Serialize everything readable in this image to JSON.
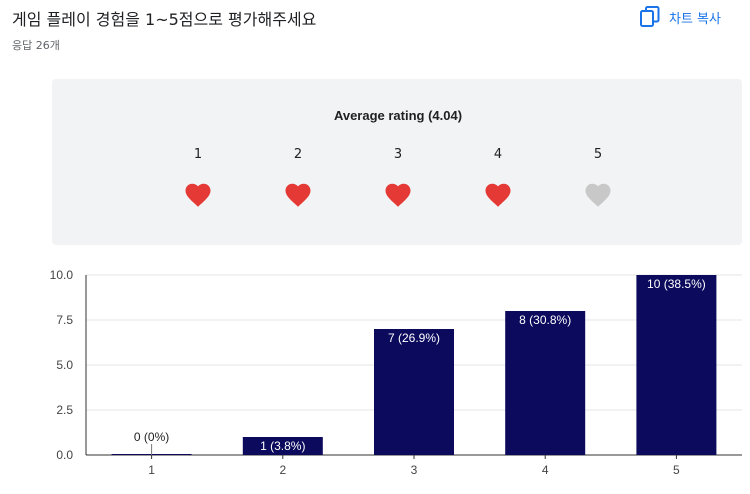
{
  "header": {
    "question": "게임 플레이 경험을 1~5점으로 평가해주세요",
    "response_count": "응답 26개",
    "copy_chart_label": "차트 복사",
    "copy_icon": "copy-icon",
    "accent_color": "#1a73e8"
  },
  "rating_summary": {
    "title": "Average rating (4.04)",
    "average": 4.04,
    "levels": [
      {
        "label": "1",
        "filled": true
      },
      {
        "label": "2",
        "filled": true
      },
      {
        "label": "3",
        "filled": true
      },
      {
        "label": "4",
        "filled": true
      },
      {
        "label": "5",
        "filled": false
      }
    ],
    "icon": "heart-icon",
    "filled_color": "#e53935",
    "empty_color": "#c8c8c8"
  },
  "chart_data": {
    "type": "bar",
    "categories": [
      "1",
      "2",
      "3",
      "4",
      "5"
    ],
    "values": [
      0,
      1,
      7,
      8,
      10
    ],
    "data_labels": [
      "0 (0%)",
      "1 (3.8%)",
      "7 (26.9%)",
      "8 (30.8%)",
      "10 (38.5%)"
    ],
    "yticks": [
      "0.0",
      "2.5",
      "5.0",
      "7.5",
      "10.0"
    ],
    "ylim": [
      0,
      10
    ],
    "grid": true,
    "bar_color": "#0b0a5c",
    "xlabel": "",
    "ylabel": ""
  }
}
